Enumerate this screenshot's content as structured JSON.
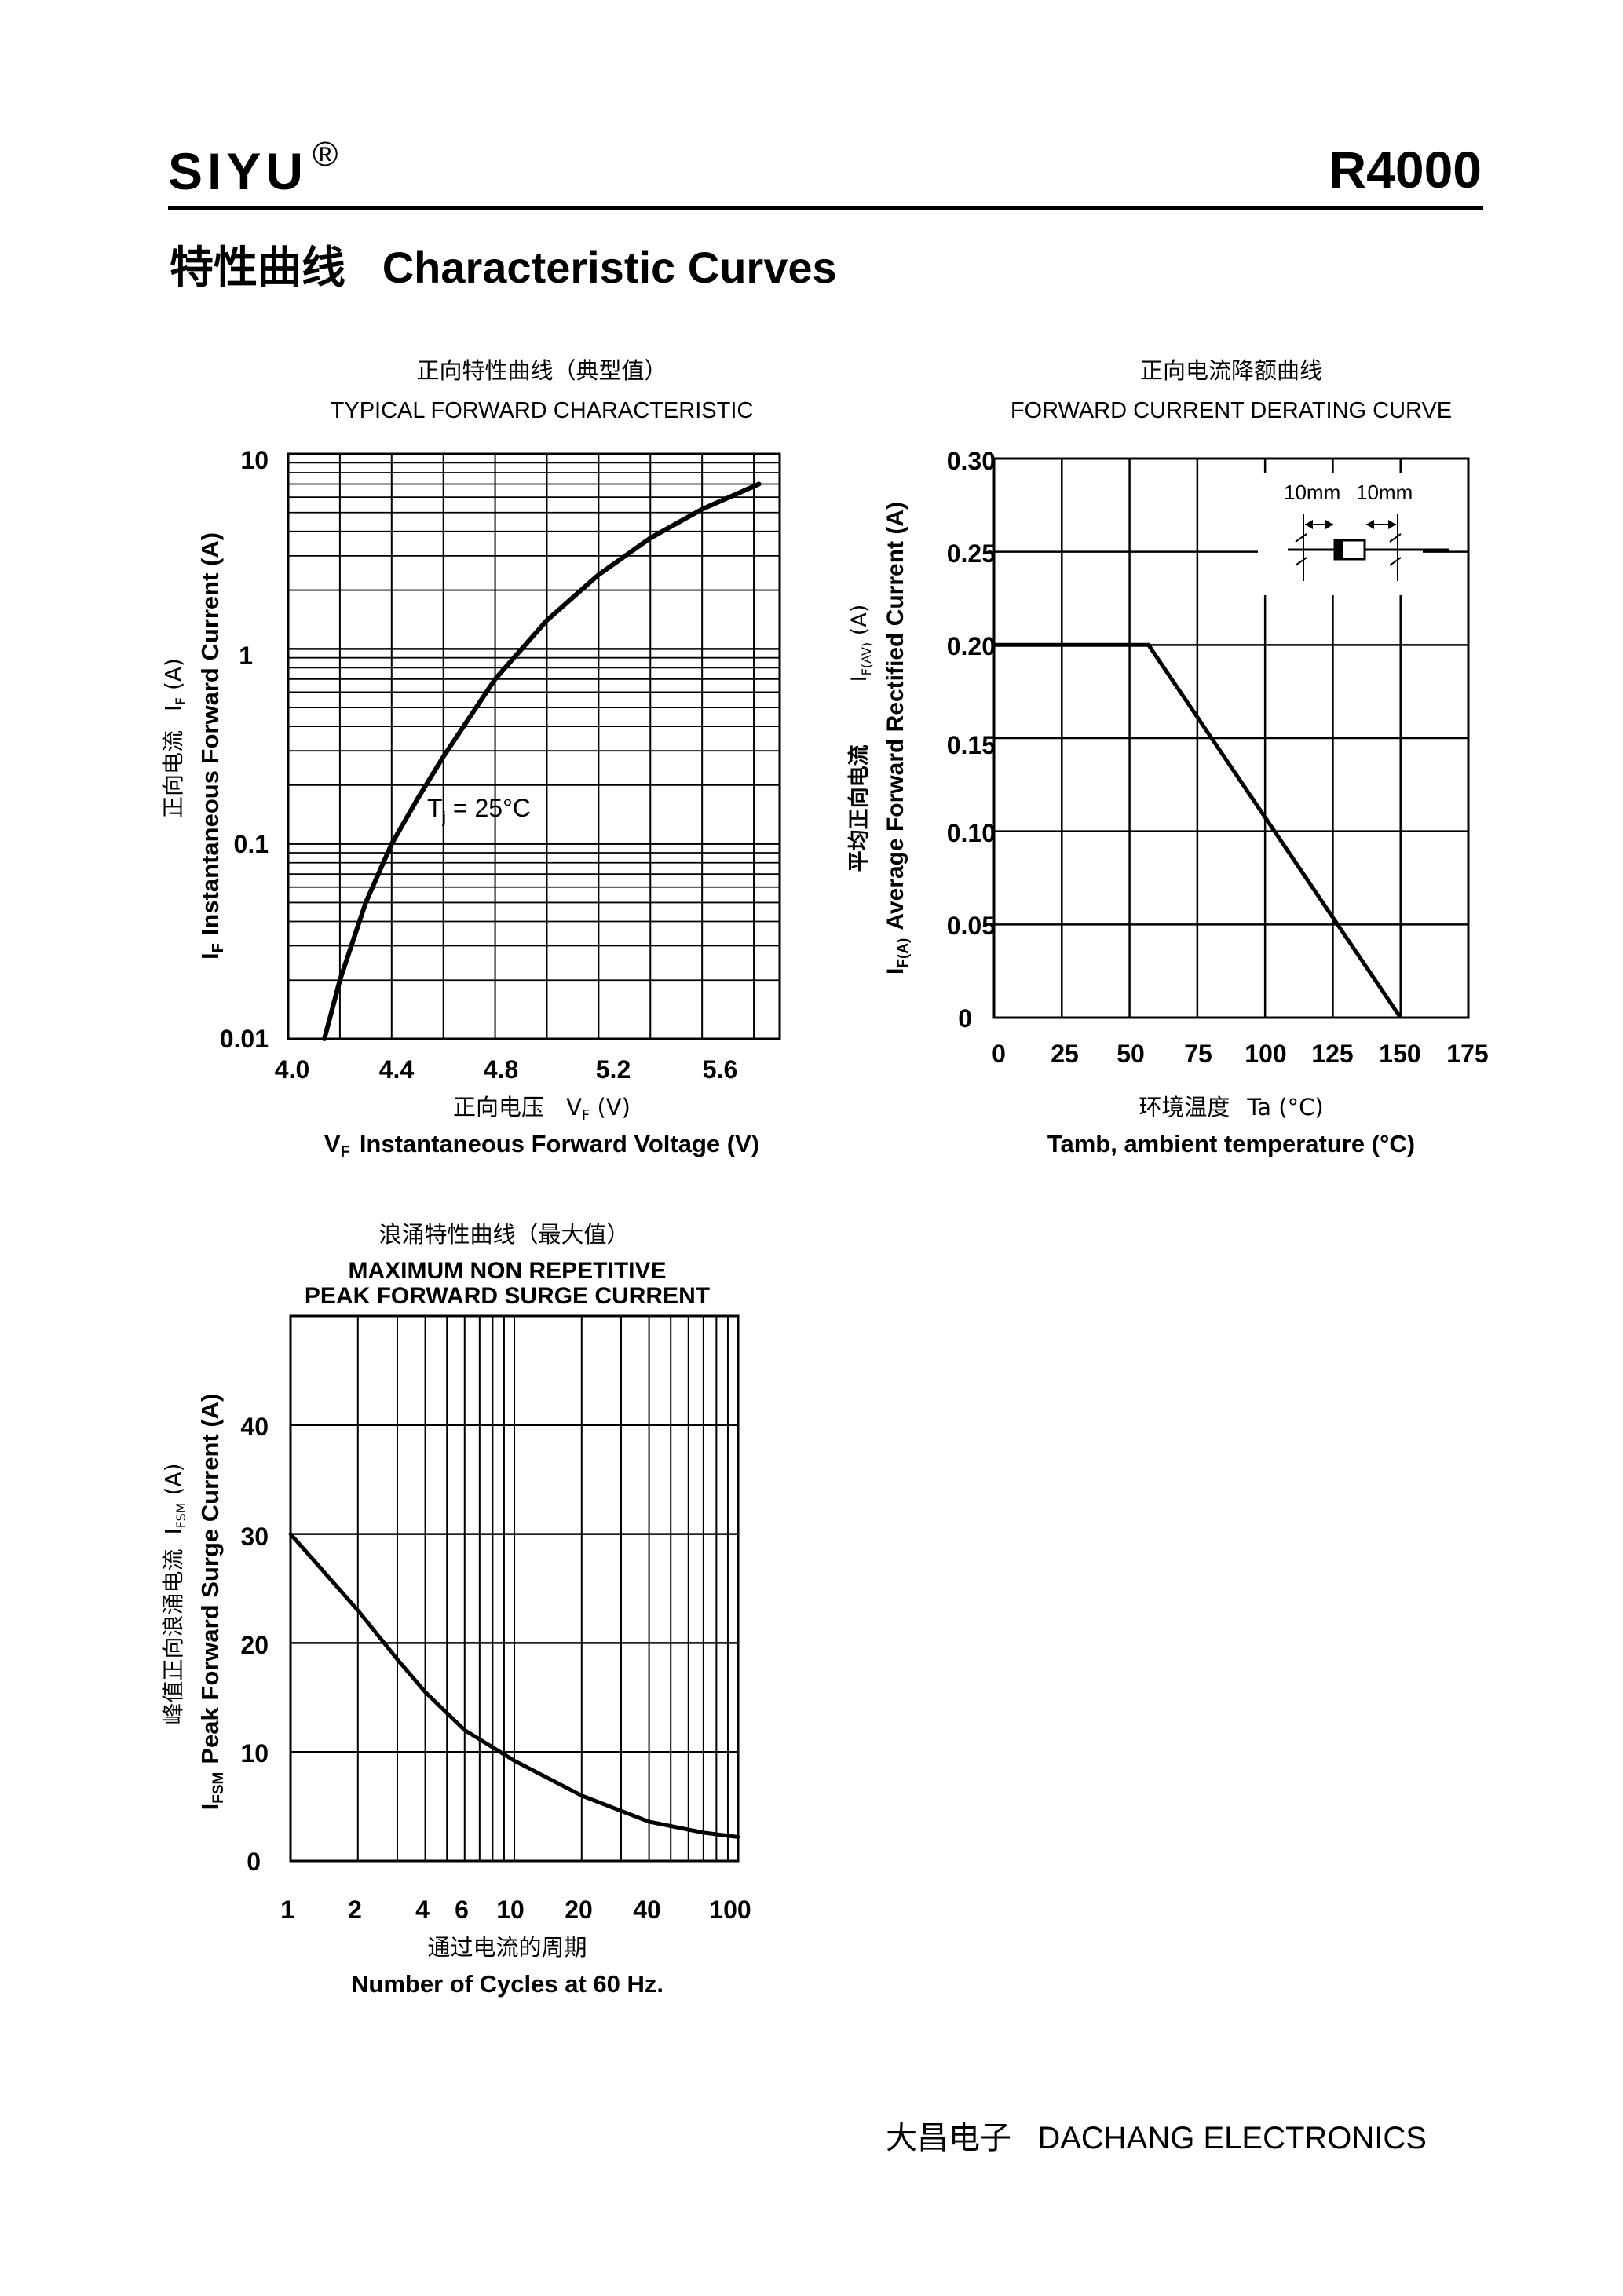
{
  "header": {
    "brand": "SIYU",
    "registered": "®",
    "model": "R4000"
  },
  "section": {
    "title_cn": "特性曲线",
    "title_en": "Characteristic Curves"
  },
  "footer": {
    "company_cn": "大昌电子",
    "company_en": "DACHANG ELECTRONICS"
  },
  "chart_data": [
    {
      "type": "line",
      "title_cn": "正向特性曲线（典型值）",
      "title": "TYPICAL FORWARD CHARACTERISTIC",
      "xlabel_cn": "正向电压",
      "xlabel_sym": "V",
      "xlabel_sub": "F",
      "xlabel_unit": " (V)",
      "xlabel": "Instantaneous Forward Voltage (V)",
      "ylabel_cn": "正向电流",
      "ylabel_sym": "I",
      "ylabel_sub": "F",
      "ylabel_unit": " (A)",
      "ylabel": "Instantaneous Forward Current (A)",
      "yscale": "log",
      "xlim": [
        4.0,
        5.9
      ],
      "ylim": [
        0.01,
        10
      ],
      "x_ticks": [
        "4.0",
        "4.4",
        "4.8",
        "5.2",
        "5.6"
      ],
      "y_ticks": [
        "10",
        "1",
        "0.1",
        "0.01"
      ],
      "annotation": {
        "text_pre": "T",
        "text_sub": "j",
        "text_post": " = 25°C"
      },
      "series": [
        {
          "name": "Tj = 25°C",
          "x": [
            4.14,
            4.2,
            4.3,
            4.4,
            4.5,
            4.6,
            4.8,
            5.0,
            5.2,
            5.4,
            5.6,
            5.82
          ],
          "y": [
            0.01,
            0.02,
            0.05,
            0.1,
            0.17,
            0.28,
            0.7,
            1.4,
            2.4,
            3.7,
            5.2,
            7.0
          ]
        }
      ]
    },
    {
      "type": "line",
      "title_cn": "正向电流降额曲线",
      "title": "FORWARD CURRENT DERATING CURVE",
      "xlabel_cn": "环境温度",
      "xlabel_sym": "Ta",
      "xlabel_unit": " (°C)",
      "xlabel": "Tamb, ambient temperature (°C)",
      "ylabel_cn": "平均正向电流",
      "ylabel_sym": "I",
      "ylabel_sub": "F(AV)",
      "ylabel_unit": " (A)",
      "ylabel_sym2": "I",
      "ylabel_sub2": "F(A)",
      "ylabel": "Average Forward Rectified Current (A)",
      "xlim": [
        0,
        175
      ],
      "ylim": [
        0,
        0.3
      ],
      "x_ticks": [
        "0",
        "25",
        "50",
        "75",
        "100",
        "125",
        "150",
        "175"
      ],
      "y_ticks": [
        "0.30",
        "0.25",
        "0.20",
        "0.15",
        "0.10",
        "0.05",
        "0"
      ],
      "inset_labels": [
        "10mm",
        "10mm"
      ],
      "series": [
        {
          "name": "derating",
          "x": [
            0,
            57,
            150
          ],
          "y": [
            0.2,
            0.2,
            0
          ]
        }
      ]
    },
    {
      "type": "line",
      "title_cn": "浪涌特性曲线（最大值）",
      "title_line1": "MAXIMUM NON REPETITIVE",
      "title_line2": "PEAK FORWARD SURGE CURRENT",
      "xlabel_cn": "通过电流的周期",
      "xlabel": "Number  of  Cycles at 60 Hz.",
      "ylabel_cn": "峰值正向浪涌电流",
      "ylabel_sym": "I",
      "ylabel_sub": "FSM",
      "ylabel_unit": " (A)",
      "ylabel": "Peak Forward Surge Current (A)",
      "xscale": "log",
      "xlim": [
        1,
        100
      ],
      "ylim": [
        0,
        50
      ],
      "x_ticks": [
        "1",
        "2",
        "4",
        "6",
        "10",
        "20",
        "40",
        "100"
      ],
      "y_ticks": [
        "40",
        "30",
        "20",
        "10",
        "0"
      ],
      "series": [
        {
          "name": "surge",
          "x": [
            1,
            2,
            3,
            4,
            6,
            10,
            20,
            40,
            70,
            100
          ],
          "y": [
            30,
            23,
            18.5,
            15.5,
            12,
            9.2,
            6,
            3.6,
            2.6,
            2.2
          ]
        }
      ]
    }
  ]
}
